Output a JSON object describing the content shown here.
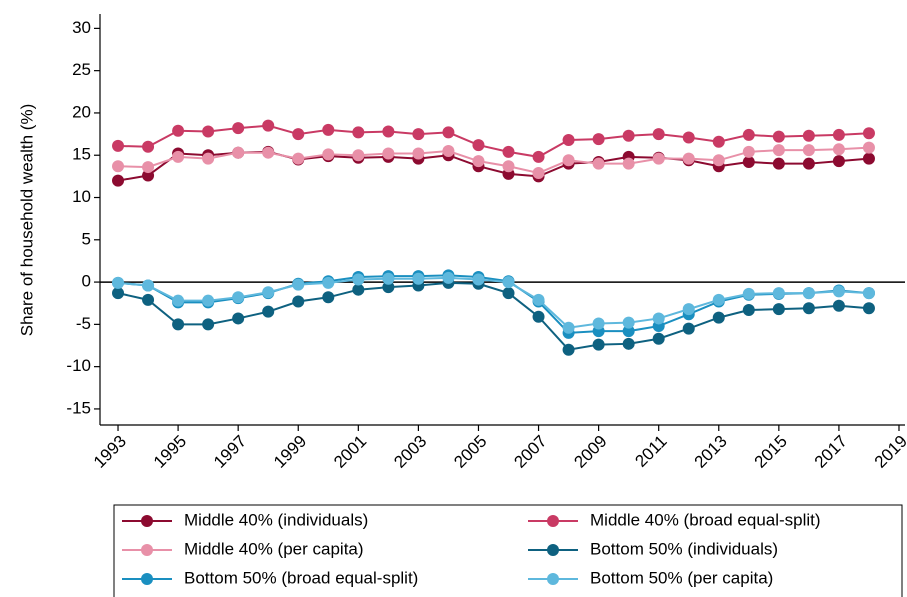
{
  "chart_data": {
    "type": "line",
    "y_label": "Share of household wealth (%)",
    "x": [
      1993,
      1994,
      1995,
      1996,
      1997,
      1998,
      1999,
      2000,
      2001,
      2002,
      2003,
      2004,
      2005,
      2006,
      2007,
      2008,
      2009,
      2010,
      2011,
      2012,
      2013,
      2014,
      2015,
      2016,
      2017,
      2018
    ],
    "series": [
      {
        "name": "Middle 40% (individuals)",
        "color": "#8c0a30",
        "values": [
          12.0,
          12.6,
          15.2,
          15.0,
          15.3,
          15.4,
          14.5,
          14.9,
          14.7,
          14.8,
          14.6,
          15.0,
          13.7,
          12.8,
          12.5,
          14.0,
          14.2,
          14.8,
          14.7,
          14.4,
          13.7,
          14.2,
          14.0,
          14.0,
          14.3,
          14.6
        ]
      },
      {
        "name": "Middle 40% (broad equal-split)",
        "color": "#c93a64",
        "values": [
          16.1,
          16.0,
          17.9,
          17.8,
          18.2,
          18.5,
          17.5,
          18.0,
          17.7,
          17.8,
          17.5,
          17.7,
          16.2,
          15.4,
          14.8,
          16.8,
          16.9,
          17.3,
          17.5,
          17.1,
          16.6,
          17.4,
          17.2,
          17.3,
          17.4,
          17.6
        ]
      },
      {
        "name": "Middle 40% (per capita)",
        "color": "#e890a8",
        "values": [
          13.7,
          13.6,
          14.8,
          14.6,
          15.3,
          15.3,
          14.6,
          15.1,
          15.0,
          15.2,
          15.2,
          15.5,
          14.3,
          13.7,
          12.9,
          14.4,
          14.0,
          14.0,
          14.6,
          14.6,
          14.4,
          15.4,
          15.6,
          15.6,
          15.7,
          15.9
        ]
      },
      {
        "name": "Bottom 50% (individuals)",
        "color": "#0e6180",
        "values": [
          -1.3,
          -2.1,
          -5.0,
          -5.0,
          -4.3,
          -3.5,
          -2.3,
          -1.8,
          -0.9,
          -0.6,
          -0.4,
          -0.1,
          -0.2,
          -1.3,
          -4.1,
          -8.0,
          -7.4,
          -7.3,
          -6.7,
          -5.5,
          -4.2,
          -3.3,
          -3.2,
          -3.1,
          -2.8,
          -3.1
        ]
      },
      {
        "name": "Bottom 50% (broad equal-split)",
        "color": "#1a8fc0",
        "values": [
          -0.1,
          -0.4,
          -2.4,
          -2.4,
          -1.9,
          -1.3,
          -0.2,
          0.1,
          0.6,
          0.7,
          0.7,
          0.8,
          0.6,
          0.1,
          -2.3,
          -6.0,
          -5.8,
          -5.8,
          -5.2,
          -3.8,
          -2.3,
          -1.5,
          -1.4,
          -1.3,
          -1.0,
          -1.3
        ]
      },
      {
        "name": "Bottom 50% (per capita)",
        "color": "#5eb8dd",
        "values": [
          -0.1,
          -0.4,
          -2.2,
          -2.2,
          -1.8,
          -1.2,
          -0.3,
          -0.1,
          0.3,
          0.4,
          0.4,
          0.5,
          0.3,
          0.0,
          -2.1,
          -5.4,
          -4.9,
          -4.8,
          -4.3,
          -3.2,
          -2.1,
          -1.4,
          -1.3,
          -1.3,
          -1.1,
          -1.3
        ]
      }
    ],
    "xlim": [
      1992.4,
      2019.2
    ],
    "xticks": [
      1993,
      1995,
      1997,
      1999,
      2001,
      2003,
      2005,
      2007,
      2009,
      2011,
      2013,
      2015,
      2017,
      2019
    ],
    "ylim": [
      -16.9,
      31.7
    ],
    "yticks": [
      -15,
      -10,
      -5,
      0,
      5,
      10,
      15,
      20,
      25,
      30
    ],
    "reference_line": 0,
    "grid": false,
    "legend_position": "bottom"
  }
}
